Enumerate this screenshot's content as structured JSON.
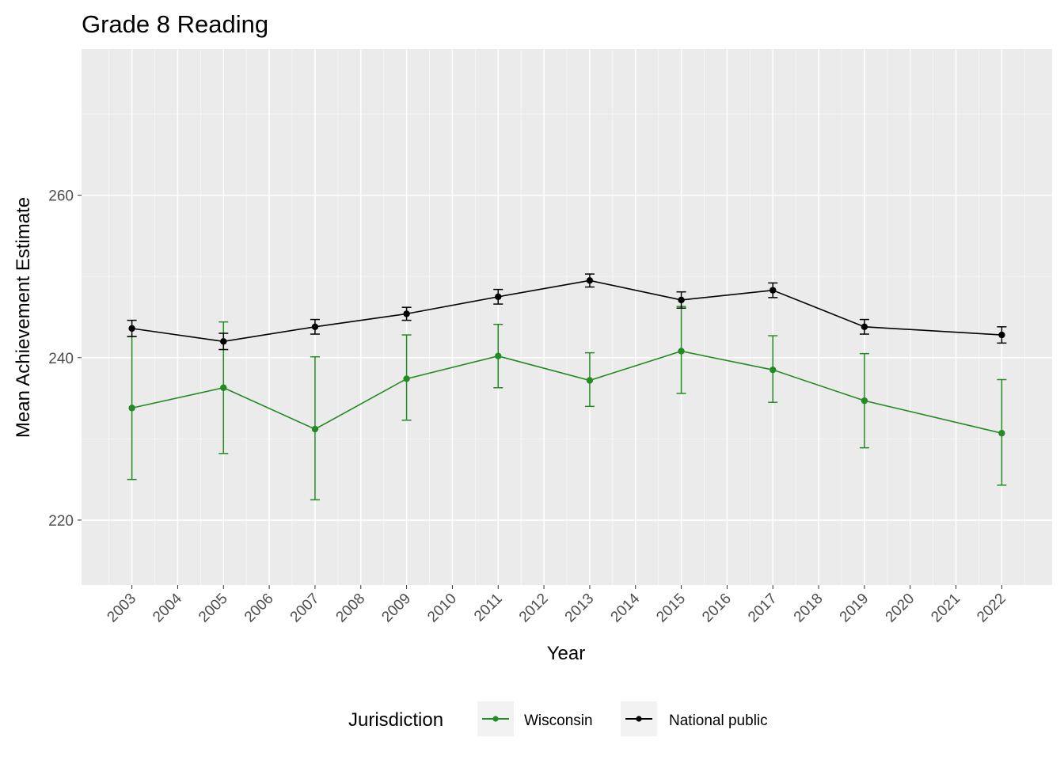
{
  "chart_data": {
    "type": "line",
    "title": "Grade 8 Reading",
    "xlabel": "Year",
    "ylabel": "Mean Achievement Estimate",
    "x": [
      2003,
      2005,
      2007,
      2009,
      2011,
      2013,
      2015,
      2017,
      2019,
      2022
    ],
    "x_tick_labels": [
      "2003",
      "2004",
      "2005",
      "2006",
      "2007",
      "2008",
      "2009",
      "2010",
      "2011",
      "2012",
      "2013",
      "2014",
      "2015",
      "2016",
      "2017",
      "2018",
      "2019",
      "2020",
      "2021",
      "2022"
    ],
    "y_ticks": [
      220,
      240,
      260
    ],
    "ylim": [
      212,
      278
    ],
    "xlim": [
      2001.9,
      2023.1
    ],
    "grid": true,
    "legend": {
      "title": "Jurisdiction",
      "position": "bottom"
    },
    "series": [
      {
        "name": "Wisconsin",
        "color": "#228b22",
        "values": [
          233.8,
          236.3,
          231.2,
          237.4,
          240.2,
          237.2,
          240.8,
          238.5,
          234.7,
          230.7
        ],
        "error_low": [
          225.0,
          228.2,
          222.5,
          232.3,
          236.3,
          234.0,
          235.6,
          234.5,
          228.9,
          224.3
        ],
        "error_high": [
          242.6,
          244.4,
          240.1,
          242.8,
          244.1,
          240.6,
          246.3,
          242.7,
          240.5,
          237.3
        ]
      },
      {
        "name": "National public",
        "color": "#000000",
        "values": [
          243.6,
          242.0,
          243.8,
          245.4,
          247.5,
          249.5,
          247.1,
          248.3,
          243.8,
          242.8
        ],
        "error_low": [
          242.6,
          241.0,
          242.9,
          244.6,
          246.6,
          248.7,
          246.1,
          247.4,
          242.9,
          241.8
        ],
        "error_high": [
          244.6,
          243.0,
          244.7,
          246.2,
          248.4,
          250.3,
          248.1,
          249.2,
          244.7,
          243.8
        ]
      }
    ]
  }
}
